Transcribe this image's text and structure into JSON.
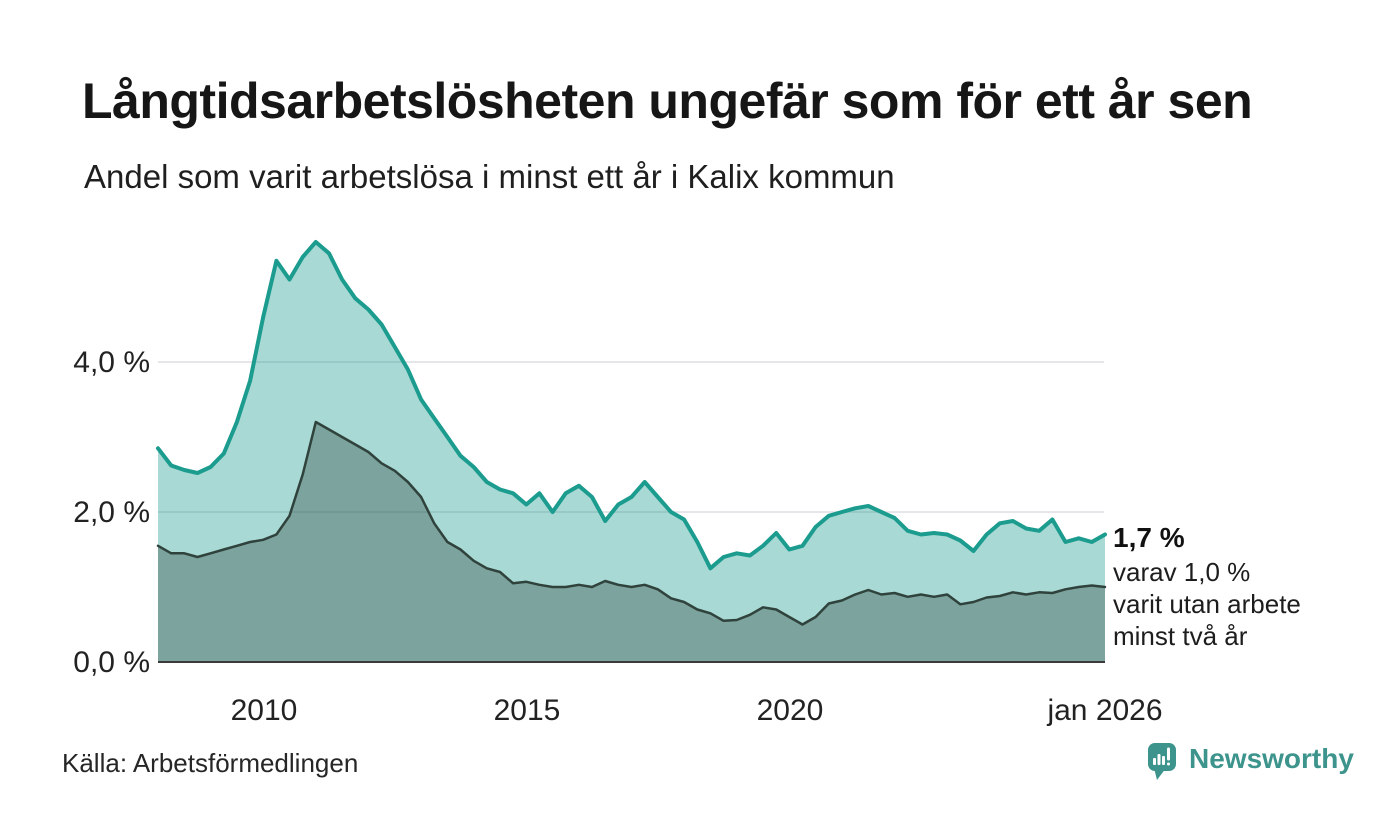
{
  "chart_data": {
    "type": "area",
    "title": "Långtidsarbetslösheten ungefär som för ett år sen",
    "subtitle": "Andel som varit arbetslösa i minst ett år i Kalix kommun",
    "unit": "percent",
    "xlim": [
      2008,
      2026
    ],
    "ylim": [
      0,
      5.8
    ],
    "grid": "horizontal",
    "x": [
      2008,
      2008.25,
      2008.5,
      2008.75,
      2009,
      2009.25,
      2009.5,
      2009.75,
      2010,
      2010.25,
      2010.5,
      2010.75,
      2011,
      2011.25,
      2011.5,
      2011.75,
      2012,
      2012.25,
      2012.5,
      2012.75,
      2013,
      2013.25,
      2013.5,
      2013.75,
      2014,
      2014.25,
      2014.5,
      2014.75,
      2015,
      2015.25,
      2015.5,
      2015.75,
      2016,
      2016.25,
      2016.5,
      2016.75,
      2017,
      2017.25,
      2017.5,
      2017.75,
      2018,
      2018.25,
      2018.5,
      2018.75,
      2019,
      2019.25,
      2019.5,
      2019.75,
      2020,
      2020.25,
      2020.5,
      2020.75,
      2021,
      2021.25,
      2021.5,
      2021.75,
      2022,
      2022.25,
      2022.5,
      2022.75,
      2023,
      2023.25,
      2023.5,
      2023.75,
      2024,
      2024.25,
      2024.5,
      2024.75,
      2025,
      2025.25,
      2025.5,
      2025.75,
      2026
    ],
    "series": [
      {
        "name": "Andel arbetslösa minst ett år",
        "color": "#1b9c8e",
        "values": [
          2.85,
          2.62,
          2.56,
          2.52,
          2.6,
          2.78,
          3.2,
          3.75,
          4.6,
          5.35,
          5.1,
          5.4,
          5.6,
          5.45,
          5.1,
          4.85,
          4.7,
          4.5,
          4.2,
          3.9,
          3.5,
          3.25,
          3.0,
          2.75,
          2.6,
          2.4,
          2.3,
          2.25,
          2.1,
          2.25,
          2.0,
          2.25,
          2.35,
          2.2,
          1.88,
          2.1,
          2.2,
          2.4,
          2.2,
          2.0,
          1.9,
          1.6,
          1.25,
          1.4,
          1.45,
          1.42,
          1.55,
          1.72,
          1.5,
          1.55,
          1.8,
          1.95,
          2.0,
          2.05,
          2.08,
          2.0,
          1.92,
          1.75,
          1.7,
          1.72,
          1.7,
          1.62,
          1.48,
          1.7,
          1.85,
          1.88,
          1.78,
          1.75,
          1.9,
          1.6,
          1.65,
          1.6,
          1.7
        ]
      },
      {
        "name": "Andel arbetslösa minst två år",
        "color": "#30423c",
        "values": [
          1.55,
          1.45,
          1.45,
          1.4,
          1.45,
          1.5,
          1.55,
          1.6,
          1.63,
          1.7,
          1.95,
          2.5,
          3.2,
          3.1,
          3.0,
          2.9,
          2.8,
          2.65,
          2.55,
          2.4,
          2.2,
          1.85,
          1.6,
          1.5,
          1.35,
          1.25,
          1.2,
          1.05,
          1.07,
          1.03,
          1.0,
          1.0,
          1.03,
          1.0,
          1.08,
          1.03,
          1.0,
          1.03,
          0.97,
          0.85,
          0.8,
          0.7,
          0.65,
          0.55,
          0.56,
          0.63,
          0.73,
          0.7,
          0.6,
          0.5,
          0.6,
          0.78,
          0.82,
          0.9,
          0.96,
          0.9,
          0.92,
          0.87,
          0.9,
          0.87,
          0.9,
          0.77,
          0.8,
          0.86,
          0.88,
          0.93,
          0.9,
          0.93,
          0.92,
          0.97,
          1.0,
          1.02,
          1.0
        ]
      }
    ],
    "y_ticks": [
      {
        "label": "0,0 %",
        "value": 0
      },
      {
        "label": "2,0 %",
        "value": 2
      },
      {
        "label": "4,0 %",
        "value": 4
      }
    ],
    "x_ticks": [
      {
        "label": "2010",
        "year": 2010
      },
      {
        "label": "2015",
        "year": 2015
      },
      {
        "label": "2020",
        "year": 2020
      },
      {
        "label": "jan 2026",
        "year": 2026
      }
    ],
    "end_annotation": {
      "value": "1,7 %",
      "lines": [
        "varav 1,0 %",
        "varit utan arbete",
        "minst två år"
      ]
    },
    "source": "Källa: Arbetsförmedlingen"
  },
  "footer": {
    "brand": "Newsworthy"
  },
  "colors": {
    "series_one_year": "#1b9c8e",
    "series_two_years": "#30423c",
    "fill_one_year": "#a8d9d4",
    "fill_two_years": "#7da39d",
    "gridline": "#e6e6ea",
    "axis_line": "#3b3b3b",
    "brand_teal": "#3d948c",
    "text": "#1a1a1a"
  }
}
